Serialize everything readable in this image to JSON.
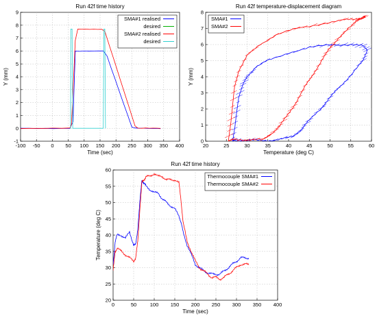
{
  "chart_data": [
    {
      "type": "line",
      "title": "Run 42f time history",
      "xlabel": "Time (sec)",
      "ylabel": "Y (mm)",
      "xlim": [
        -100,
        400
      ],
      "ylim": [
        -1,
        9
      ],
      "xticks": [
        -100,
        -50,
        0,
        50,
        100,
        150,
        200,
        250,
        300,
        350,
        400
      ],
      "yticks": [
        -1,
        0,
        1,
        2,
        3,
        4,
        5,
        6,
        7,
        8,
        9
      ],
      "xtick_labels": [
        "-100",
        "-50",
        "0",
        "50",
        "100",
        "150",
        "200",
        "250",
        "300",
        "350",
        "400"
      ],
      "ytick_labels": [
        "-1",
        "0",
        "1",
        "2",
        "3",
        "4",
        "5",
        "6",
        "7",
        "8",
        "9"
      ],
      "grid": true,
      "legend": "top-right",
      "series": [
        {
          "name": "SMA#1 realised",
          "color": "#0000ff",
          "x": [
            -100,
            55,
            65,
            72,
            160,
            172,
            250,
            260,
            340
          ],
          "y": [
            0,
            0,
            0.5,
            6.0,
            6.0,
            5.6,
            0.1,
            0,
            0
          ]
        },
        {
          "name": "desired",
          "color": "#00b000",
          "x": [],
          "y": []
        },
        {
          "name": "SMA#2 realised",
          "color": "#ff0000",
          "x": [
            -100,
            55,
            60,
            72,
            80,
            155,
            165,
            260,
            270,
            340
          ],
          "y": [
            0,
            0,
            0.3,
            6.8,
            7.7,
            7.7,
            7.5,
            0.2,
            0,
            0
          ]
        },
        {
          "name": "desired",
          "color": "#30d0d0",
          "x": [
            55,
            57,
            58,
            62,
            64,
            160,
            162,
            165,
            167
          ],
          "y": [
            0,
            0,
            7.7,
            7.7,
            0,
            0,
            7.7,
            7.7,
            0
          ]
        }
      ]
    },
    {
      "type": "line",
      "title": "Run 42f temperature-displacement diagram",
      "xlabel": "Temperature (deg C)",
      "ylabel": "Y (mm)",
      "xlim": [
        20,
        60
      ],
      "ylim": [
        0,
        8
      ],
      "xticks": [
        20,
        25,
        30,
        35,
        40,
        45,
        50,
        55,
        60
      ],
      "yticks": [
        0,
        1,
        2,
        3,
        4,
        5,
        6,
        7,
        8
      ],
      "xtick_labels": [
        "20",
        "25",
        "30",
        "35",
        "40",
        "45",
        "50",
        "55",
        "60"
      ],
      "ytick_labels": [
        "0",
        "1",
        "2",
        "3",
        "4",
        "5",
        "6",
        "7",
        "8"
      ],
      "grid": true,
      "legend": "top-left",
      "series": [
        {
          "name": "SMA#1",
          "color": "#0000ff",
          "x": [
            26.5,
            27,
            27.5,
            28,
            29,
            30,
            32,
            35,
            40,
            45,
            50,
            55,
            58,
            59,
            58,
            55,
            52,
            50,
            48,
            45,
            43,
            41,
            38,
            35,
            32,
            29,
            27,
            26.5
          ],
          "y": [
            0,
            0.8,
            1.8,
            2.8,
            3.5,
            4.0,
            4.6,
            5.0,
            5.5,
            5.8,
            6.0,
            6.0,
            5.9,
            5.7,
            5.0,
            4.1,
            3.3,
            2.7,
            2.1,
            1.3,
            0.7,
            0.3,
            0.1,
            0.05,
            0.05,
            0.05,
            0.05,
            0
          ]
        },
        {
          "name": "SMA#2",
          "color": "#ff0000",
          "x": [
            25.5,
            26,
            26.5,
            27,
            28,
            30,
            33,
            37,
            42,
            48,
            53,
            56,
            58,
            58.5,
            57,
            55,
            52,
            50,
            48,
            46,
            44,
            42,
            40,
            38,
            36,
            34,
            30,
            27,
            25.5
          ],
          "y": [
            0,
            1.0,
            2.2,
            3.4,
            4.4,
            5.3,
            6.0,
            6.6,
            7.0,
            7.3,
            7.5,
            7.6,
            7.7,
            7.7,
            7.6,
            7.1,
            6.4,
            5.8,
            5.0,
            4.2,
            3.4,
            2.5,
            1.7,
            1.0,
            0.5,
            0.1,
            0.1,
            0.1,
            0
          ]
        }
      ]
    },
    {
      "type": "line",
      "title": "Run 42f time history",
      "xlabel": "Time (sec)",
      "ylabel": "Temperature (deg C)",
      "xlim": [
        0,
        400
      ],
      "ylim": [
        20,
        60
      ],
      "xticks": [
        0,
        50,
        100,
        150,
        200,
        250,
        300,
        350,
        400
      ],
      "yticks": [
        20,
        25,
        30,
        35,
        40,
        45,
        50,
        55,
        60
      ],
      "xtick_labels": [
        "0",
        "50",
        "100",
        "150",
        "200",
        "250",
        "300",
        "350",
        "400"
      ],
      "ytick_labels": [
        "20",
        "25",
        "30",
        "35",
        "40",
        "45",
        "50",
        "55",
        "60"
      ],
      "grid": true,
      "legend": "top-right",
      "series": [
        {
          "name": "Thermocouple SMA#1",
          "color": "#0000ff",
          "x": [
            0,
            5,
            10,
            20,
            30,
            40,
            50,
            55,
            60,
            65,
            70,
            75,
            80,
            90,
            100,
            110,
            120,
            130,
            140,
            150,
            160,
            165,
            170,
            180,
            190,
            200,
            210,
            220,
            230,
            240,
            250,
            260,
            270,
            280,
            290,
            300,
            310,
            320,
            330
          ],
          "y": [
            31,
            38,
            40,
            40,
            39,
            41,
            37,
            37,
            42,
            50,
            57,
            56,
            55,
            54,
            53,
            53,
            51,
            50,
            49,
            48,
            46,
            44,
            41,
            37,
            34,
            31,
            30,
            29,
            28.5,
            28,
            28,
            28,
            29,
            30,
            31,
            32,
            33,
            33,
            33
          ]
        },
        {
          "name": "Thermocouple SMA#2",
          "color": "#ff0000",
          "x": [
            0,
            5,
            10,
            20,
            30,
            40,
            50,
            55,
            60,
            65,
            70,
            75,
            80,
            90,
            100,
            110,
            120,
            130,
            140,
            150,
            160,
            165,
            170,
            180,
            190,
            200,
            210,
            220,
            230,
            240,
            250,
            260,
            270,
            280,
            290,
            300,
            310,
            320,
            330
          ],
          "y": [
            29,
            35,
            36,
            35,
            34,
            33,
            32,
            33,
            38,
            48,
            56,
            57,
            58,
            58,
            59,
            58,
            58,
            57,
            57,
            57,
            56,
            51,
            44,
            38,
            35,
            32,
            30,
            29,
            28,
            27,
            27,
            26.5,
            27,
            28,
            29,
            30,
            31,
            31,
            31
          ]
        }
      ]
    }
  ]
}
